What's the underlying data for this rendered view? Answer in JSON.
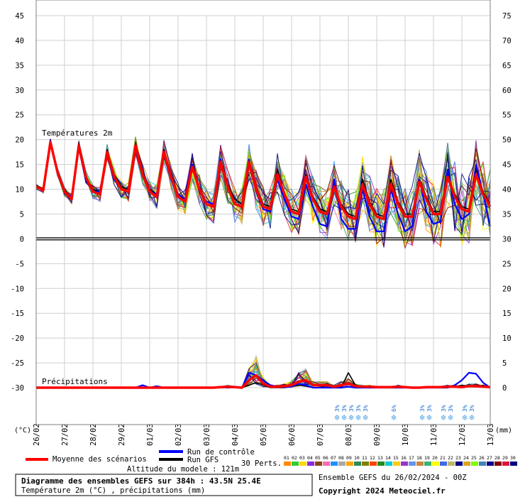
{
  "chart_data": {
    "type": "line",
    "title": "Diagramme des ensembles GEFS sur 384h : 43.5N 25.4E",
    "subtitle": "Température 2m (°C) , précipitations (mm)",
    "section_labels": {
      "temperature": "Températures 2m",
      "precipitation": "Précipitations"
    },
    "left_axis": {
      "unit_label": "(°C)",
      "range": [
        -30,
        45
      ],
      "ticks": [
        45,
        40,
        35,
        30,
        25,
        20,
        15,
        10,
        5,
        0,
        -5,
        -10,
        -15,
        -20,
        -25,
        -30
      ]
    },
    "right_axis": {
      "unit_label": "(mm)",
      "ticks": [
        75,
        70,
        65,
        60,
        55,
        50,
        45,
        40,
        35,
        30,
        25,
        20,
        15,
        10,
        5,
        0
      ]
    },
    "x_axis": {
      "dates": [
        "26/02",
        "27/02",
        "28/02",
        "29/02",
        "01/03",
        "02/03",
        "03/03",
        "04/03",
        "05/03",
        "06/03",
        "07/03",
        "08/03",
        "09/03",
        "10/03",
        "11/03",
        "12/03",
        "13/03"
      ]
    },
    "legend": {
      "mean_label": "Moyenne des scénarios",
      "control_label": "Run de contrôle",
      "gfs_label": "Run GFS",
      "perts_label": "30 Perts.",
      "pert_ids": [
        "01",
        "02",
        "03",
        "04",
        "05",
        "06",
        "07",
        "08",
        "09",
        "10",
        "11",
        "12",
        "13",
        "14",
        "15",
        "16",
        "17",
        "18",
        "19",
        "20",
        "21",
        "22",
        "23",
        "24",
        "25",
        "26",
        "27",
        "28",
        "29",
        "30"
      ],
      "pert_colors": [
        "#ff8c00",
        "#32cd32",
        "#ffd700",
        "#8a2be2",
        "#8b4513",
        "#ff69b4",
        "#1e90ff",
        "#a9a9a9",
        "#ffa500",
        "#2e8b57",
        "#808000",
        "#ff4500",
        "#228b22",
        "#00ced1",
        "#ffcc00",
        "#9932cc",
        "#6495ed",
        "#cd853f",
        "#3cb371",
        "#ffff00",
        "#4169e1",
        "#bdb76b",
        "#00008b",
        "#daa520",
        "#7cfc00",
        "#4682b4",
        "#00008b",
        "#800000",
        "#dc143c",
        "#000080"
      ]
    },
    "snow_marks": [
      {
        "label": "3%",
        "day": 10.6
      },
      {
        "label": "3%",
        "day": 10.85
      },
      {
        "label": "3%",
        "day": 11.1
      },
      {
        "label": "3%",
        "day": 11.35
      },
      {
        "label": "3%",
        "day": 11.6
      },
      {
        "label": "6%",
        "day": 12.6
      },
      {
        "label": "3%",
        "day": 13.6
      },
      {
        "label": "3%",
        "day": 13.85
      },
      {
        "label": "3%",
        "day": 14.35
      },
      {
        "label": "3%",
        "day": 14.6
      },
      {
        "label": "3%",
        "day": 15.1
      },
      {
        "label": "3%",
        "day": 15.35
      }
    ],
    "altitude": "Altitude du modele : 121m",
    "run_info": "Ensemble GEFS du 26/02/2024 - 00Z",
    "copyright": "Copyright 2024 Meteociel.fr",
    "series": [
      {
        "name": "Moyenne des scénarios",
        "color": "#ff0000",
        "t": [
          0,
          0.25,
          0.5,
          0.75,
          1,
          1.25,
          1.5,
          1.75,
          2,
          2.25,
          2.5,
          2.75,
          3,
          3.25,
          3.5,
          3.75,
          4,
          4.25,
          4.5,
          4.75,
          5,
          5.25,
          5.5,
          5.75,
          6,
          6.25,
          6.5,
          6.75,
          7,
          7.25,
          7.5,
          7.75,
          8,
          8.25,
          8.5,
          8.75,
          9,
          9.25,
          9.5,
          9.75,
          10,
          10.25,
          10.5,
          10.75,
          11,
          11.25,
          11.5,
          11.75,
          12,
          12.25,
          12.5,
          12.75,
          13,
          13.25,
          13.5,
          13.75,
          14,
          14.25,
          14.5,
          14.75,
          15,
          15.25,
          15.5,
          15.75,
          16
        ],
        "temp": [
          10.5,
          9.8,
          19.5,
          13.5,
          9.5,
          8,
          18.8,
          12.5,
          9.5,
          9,
          17.5,
          12.5,
          10,
          9.5,
          18.8,
          13,
          9.5,
          8.5,
          17.5,
          12.5,
          8.5,
          7.5,
          14.5,
          10,
          7,
          6.5,
          15.5,
          10.5,
          7,
          6.5,
          15.5,
          10,
          6.5,
          6,
          13,
          9,
          5.5,
          5,
          12.5,
          8,
          5.5,
          5,
          10.5,
          6.5,
          4.5,
          4,
          11,
          7,
          4.5,
          4,
          11,
          7,
          4.5,
          4.5,
          11.5,
          8,
          5,
          5,
          12.5,
          8.5,
          6,
          5.5,
          13,
          9,
          6.5
        ],
        "precip": [
          0,
          0,
          0,
          0,
          0,
          0,
          0,
          0,
          0,
          0,
          0,
          0,
          0,
          0,
          0,
          0,
          0,
          0,
          0,
          0,
          0,
          0,
          0,
          0,
          0,
          0,
          0.1,
          0.2,
          0.1,
          0,
          1.5,
          2.5,
          0.8,
          0.2,
          0.2,
          0.3,
          0.5,
          1.2,
          1.5,
          0.5,
          0.5,
          0.5,
          0.2,
          0.5,
          0.8,
          0.3,
          0.2,
          0.2,
          0.1,
          0.1,
          0.1,
          0.2,
          0.1,
          0,
          0,
          0.1,
          0.1,
          0.1,
          0.2,
          0.2,
          0.1,
          0.3,
          0.3,
          0.2,
          0.1
        ]
      },
      {
        "name": "Run de contrôle",
        "color": "#0000ff",
        "t": [
          0,
          0.25,
          0.5,
          0.75,
          1,
          1.25,
          1.5,
          1.75,
          2,
          2.25,
          2.5,
          2.75,
          3,
          3.25,
          3.5,
          3.75,
          4,
          4.25,
          4.5,
          4.75,
          5,
          5.25,
          5.5,
          5.75,
          6,
          6.25,
          6.5,
          6.75,
          7,
          7.25,
          7.5,
          7.75,
          8,
          8.25,
          8.5,
          8.75,
          9,
          9.25,
          9.5,
          9.75,
          10,
          10.25,
          10.5,
          10.75,
          11,
          11.25,
          11.5,
          11.75,
          12,
          12.25,
          12.5,
          12.75,
          13,
          13.25,
          13.5,
          13.75,
          14,
          14.25,
          14.5,
          14.75,
          15,
          15.25,
          15.5,
          15.75,
          16
        ],
        "temp": [
          10.5,
          10,
          19.8,
          13.5,
          9.5,
          8.5,
          18.5,
          12,
          9.5,
          9.5,
          17,
          12,
          10,
          9.5,
          18.5,
          13,
          9.5,
          9,
          17,
          12,
          9,
          8,
          15,
          9.5,
          7.5,
          7,
          16,
          10.5,
          7,
          6.5,
          16,
          9.5,
          6,
          5.5,
          12,
          8,
          4.5,
          4,
          11,
          6.5,
          3,
          2.5,
          12,
          4,
          2,
          2,
          10,
          4.5,
          1.5,
          1.5,
          10,
          5,
          1.5,
          2.5,
          12,
          5.5,
          3,
          3.5,
          14,
          7,
          4,
          5,
          15,
          9,
          2.5
        ],
        "precip": [
          0,
          0,
          0,
          0,
          0,
          0,
          0,
          0,
          0,
          0,
          0,
          0,
          0,
          0,
          0,
          0.5,
          0,
          0.3,
          0,
          0,
          0,
          0,
          0,
          0,
          0,
          0,
          0.2,
          0,
          0.2,
          0,
          3,
          2.5,
          1.5,
          0.5,
          0.2,
          0.1,
          0.2,
          0.8,
          0.5,
          0,
          0,
          0,
          0,
          0,
          0.2,
          0,
          0,
          0,
          0,
          0,
          0,
          0,
          0,
          0,
          0,
          0,
          0,
          0,
          0,
          0.5,
          1.5,
          3,
          2.8,
          1,
          0
        ]
      },
      {
        "name": "Run GFS",
        "color": "#000000",
        "t": [
          0,
          0.25,
          0.5,
          0.75,
          1,
          1.25,
          1.5,
          1.75,
          2,
          2.25,
          2.5,
          2.75,
          3,
          3.25,
          3.5,
          3.75,
          4,
          4.25,
          4.5,
          4.75,
          5,
          5.25,
          5.5,
          5.75,
          6,
          6.25,
          6.5,
          6.75,
          7,
          7.25,
          7.5,
          7.75,
          8,
          8.25,
          8.5,
          8.75,
          9,
          9.25,
          9.5,
          9.75,
          10,
          10.25,
          10.5,
          10.75,
          11,
          11.25,
          11.5,
          11.75,
          12,
          12.25,
          12.5,
          12.75,
          13,
          13.25,
          13.5,
          13.75,
          14,
          14.25,
          14.5,
          14.75,
          15,
          15.25,
          15.5,
          15.75,
          16
        ],
        "temp": [
          10.8,
          10,
          20,
          13,
          10,
          8,
          19,
          12.5,
          10,
          9.5,
          18,
          13,
          10.5,
          10,
          19,
          13.5,
          10,
          9,
          18,
          13,
          9,
          8,
          15,
          10,
          7.5,
          7,
          16,
          11,
          8,
          7,
          16,
          10.5,
          7,
          6.5,
          14,
          9,
          6,
          5.5,
          13,
          8.5,
          6,
          5.5,
          10,
          7,
          5,
          4.5,
          12,
          7.5,
          5,
          4.5,
          12,
          7.5,
          5,
          5,
          12,
          8.5,
          5.5,
          5.5,
          13,
          9,
          6.5,
          6,
          14,
          9.5,
          7
        ],
        "precip": [
          0,
          0,
          0,
          0,
          0,
          0,
          0,
          0,
          0,
          0,
          0,
          0,
          0,
          0,
          0,
          0,
          0,
          0,
          0,
          0,
          0,
          0,
          0,
          0,
          0,
          0,
          0,
          0,
          0,
          0,
          0.5,
          1,
          0.5,
          0,
          0,
          0,
          0.2,
          0.5,
          0.3,
          0,
          0,
          0.5,
          0.2,
          0,
          3,
          0.5,
          0,
          0,
          0,
          0,
          0,
          0,
          0,
          0,
          0,
          0,
          0,
          0,
          0,
          0.2,
          0.5,
          0.3,
          0.2,
          0.5,
          0
        ]
      }
    ]
  }
}
